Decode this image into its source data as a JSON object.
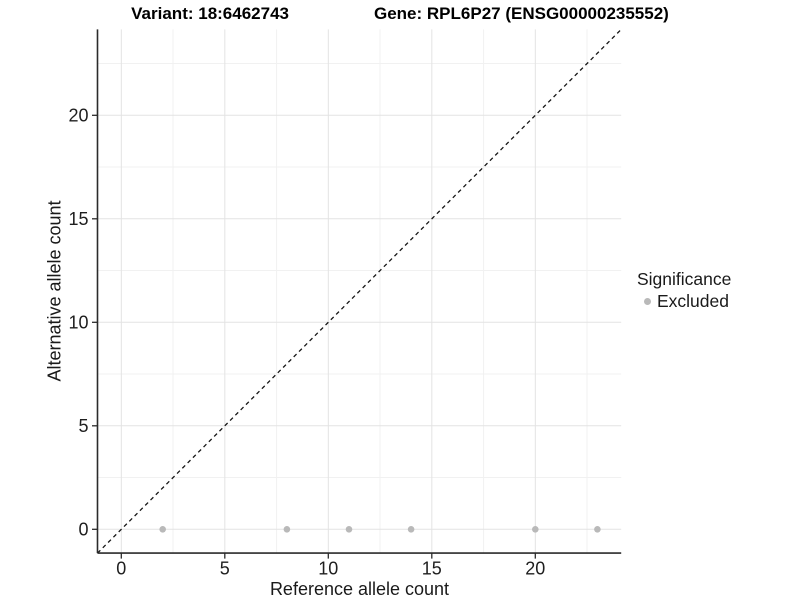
{
  "title": {
    "variant": "Variant: 18:6462743",
    "gene": "Gene: RPL6P27 (ENSG00000235552)"
  },
  "legend": {
    "title": "Significance",
    "items": [
      {
        "label": "Excluded",
        "color": "#b9b9b9"
      }
    ]
  },
  "colors": {
    "background": "#ffffff",
    "grid_major": "#e3e3e3",
    "grid_minor": "#f1f1f1",
    "axis_line": "#2b2b2b",
    "tick_text": "#1f1f1f",
    "identity_line": "#161616",
    "point": "#b9b9b9"
  },
  "chart_data": {
    "type": "scatter",
    "title": "Variant: 18:6462743    Gene: RPL6P27 (ENSG00000235552)",
    "xlabel": "Reference allele count",
    "ylabel": "Alternative allele count",
    "xlim": [
      -1.15,
      24.15
    ],
    "ylim": [
      -1.15,
      24.15
    ],
    "xticks": [
      0,
      5,
      10,
      15,
      20
    ],
    "yticks": [
      0,
      5,
      10,
      15,
      20
    ],
    "minor_ticks_x": [
      2.5,
      7.5,
      12.5,
      17.5,
      22.5
    ],
    "minor_ticks_y": [
      2.5,
      7.5,
      12.5,
      17.5,
      22.5
    ],
    "grid": true,
    "legend_title": "Significance",
    "legend_position": "right",
    "identity_line": {
      "type": "abline",
      "slope": 1,
      "intercept": 0,
      "style": "dashed"
    },
    "series": [
      {
        "name": "Excluded",
        "color": "#b9b9b9",
        "points": [
          [
            2,
            0
          ],
          [
            8,
            0
          ],
          [
            11,
            0
          ],
          [
            14,
            0
          ],
          [
            20,
            0
          ],
          [
            23,
            0
          ]
        ]
      }
    ]
  }
}
